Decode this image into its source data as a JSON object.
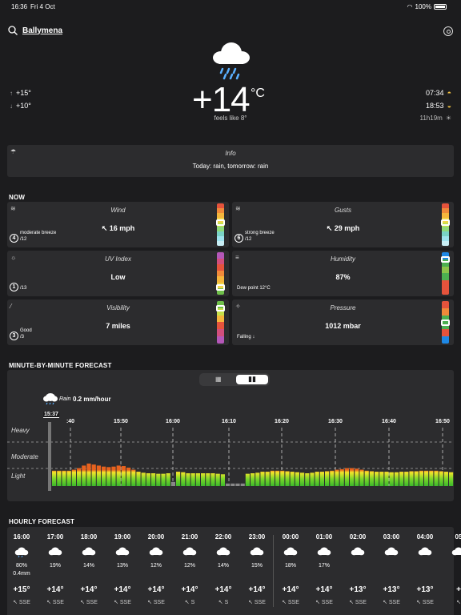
{
  "status": {
    "time": "16:36",
    "date": "Fri 4 Oct",
    "battery": "100%"
  },
  "location": {
    "name": "Ballymena"
  },
  "current": {
    "temperature": "+14",
    "unit": "°C",
    "feels_like": "feels like 8°",
    "high": "+15°",
    "low": "+10°",
    "sunrise": "07:34",
    "sunset": "18:53",
    "daylight": "11h19m"
  },
  "info": {
    "title": "Info",
    "text": "Today: rain, tomorrow: rain"
  },
  "now": {
    "heading": "NOW",
    "cards": [
      {
        "title": "Wind",
        "value": "16 mph",
        "sub": "moderate breeze",
        "badge": "4",
        "of": "/12",
        "mark": 0.45,
        "scale": [
          "#e5533c",
          "#f08a3a",
          "#f5b63c",
          "#f2d54a",
          "#c5e04a",
          "#8fd97a",
          "#7ad3c6",
          "#9fe3ee",
          "#c8eef5"
        ]
      },
      {
        "title": "Gusts",
        "value": "29 mph",
        "sub": "strong breeze",
        "badge": "6",
        "of": "/12",
        "mark": 0.45,
        "scale": [
          "#e5533c",
          "#f08a3a",
          "#f5b63c",
          "#f2d54a",
          "#c5e04a",
          "#8fd97a",
          "#7ad3c6",
          "#9fe3ee",
          "#c8eef5"
        ]
      },
      {
        "title": "UV Index",
        "value": "Low",
        "sub": "",
        "badge": "1",
        "of": "/13",
        "mark": 0.88,
        "scale": [
          "#b457b8",
          "#d14e7c",
          "#e5533c",
          "#f08a3a",
          "#f5b63c",
          "#f2d54a",
          "#6fbf4a"
        ]
      },
      {
        "title": "Humidity",
        "value": "87%",
        "sub": "Dew point 12°C",
        "badge": "",
        "of": "",
        "mark": 0.1,
        "scale": [
          "#1e88e5",
          "#4caf50",
          "#8bc34a",
          "#4caf50",
          "#e5533c",
          "#e5533c"
        ]
      },
      {
        "title": "Visibility",
        "value": "7 miles",
        "sub": "Good",
        "badge": "3",
        "of": "/3",
        "mark": 0.1,
        "scale": [
          "#6fbf4a",
          "#c5e04a",
          "#f5b63c",
          "#e5533c",
          "#d14e7c",
          "#b457b8"
        ]
      },
      {
        "title": "Pressure",
        "value": "1012 mbar",
        "sub": "Falling ↓",
        "badge": "",
        "of": "",
        "mark": 0.5,
        "scale": [
          "#e5533c",
          "#f08a3a",
          "#4caf50",
          "#4caf50",
          "#e5533c",
          "#1e88e5"
        ]
      }
    ]
  },
  "minute": {
    "heading": "MINUTE-BY-MINUTE FORECAST",
    "rain_label": "Rain",
    "rain_value": "0.2 mm/hour",
    "current_time": "15:37",
    "levels": [
      "Heavy",
      "Moderate",
      "Light"
    ],
    "times": [
      ":40",
      "15:50",
      "16:00",
      "16:10",
      "16:20",
      "16:30",
      "16:40",
      "16:50"
    ]
  },
  "hourly": {
    "heading": "HOURLY FORECAST",
    "hours": [
      {
        "time": "16:00",
        "prob": "80%",
        "amount": "0.4mm",
        "temp": "+15°",
        "dir": "SSE"
      },
      {
        "time": "17:00",
        "prob": "19%",
        "amount": "",
        "temp": "+14°",
        "dir": "SSE"
      },
      {
        "time": "18:00",
        "prob": "14%",
        "amount": "",
        "temp": "+14°",
        "dir": "SSE"
      },
      {
        "time": "19:00",
        "prob": "13%",
        "amount": "",
        "temp": "+14°",
        "dir": "SSE"
      },
      {
        "time": "20:00",
        "prob": "12%",
        "amount": "",
        "temp": "+14°",
        "dir": "SSE"
      },
      {
        "time": "21:00",
        "prob": "12%",
        "amount": "",
        "temp": "+14°",
        "dir": "S"
      },
      {
        "time": "22:00",
        "prob": "14%",
        "amount": "",
        "temp": "+14°",
        "dir": "S"
      },
      {
        "time": "23:00",
        "prob": "15%",
        "amount": "",
        "temp": "+14°",
        "dir": "SSE"
      },
      {
        "time": "00:00",
        "prob": "18%",
        "amount": "",
        "temp": "+14°",
        "dir": "SSE"
      },
      {
        "time": "01:00",
        "prob": "17%",
        "amount": "",
        "temp": "+14°",
        "dir": "SSE"
      },
      {
        "time": "02:00",
        "prob": "",
        "amount": "",
        "temp": "+13°",
        "dir": "SSE"
      },
      {
        "time": "03:00",
        "prob": "",
        "amount": "",
        "temp": "+13°",
        "dir": "SSE"
      },
      {
        "time": "04:00",
        "prob": "",
        "amount": "",
        "temp": "+13°",
        "dir": "SSE"
      },
      {
        "time": "05",
        "prob": "",
        "amount": "",
        "temp": "+",
        "dir": ""
      }
    ]
  },
  "chart_data": {
    "type": "bar",
    "series": [
      {
        "values": [
          3,
          3,
          3,
          3,
          3.2,
          3.5,
          4,
          4.4,
          4.2,
          4,
          3.8,
          3.7,
          3.8,
          4,
          3.9,
          3.6,
          3.2,
          2.8,
          2.6,
          2.5,
          2.5,
          2.4,
          2.4,
          2.5,
          0.8,
          2.8,
          2.7,
          2.5,
          2.5,
          2.5,
          2.5,
          2.5,
          2.5,
          2.4,
          2.3,
          0.5,
          0.5,
          0.5,
          0.5,
          2.4,
          2.5,
          2.6,
          2.8,
          2.8,
          3,
          3,
          3,
          2.9,
          2.8,
          2.7,
          2.6,
          2.5,
          2.6,
          2.8,
          2.8,
          2.9,
          3,
          3.2,
          3.3,
          3.5,
          3.5,
          3.4,
          3.2,
          3,
          2.9,
          2.8,
          2.8,
          2.8,
          2.7,
          2.7,
          2.8,
          2.8,
          2.9,
          2.9,
          3,
          3,
          3,
          3,
          2.9,
          2.8,
          2.7
        ]
      }
    ],
    "levels": [
      "Light",
      "Moderate",
      "Heavy"
    ]
  }
}
